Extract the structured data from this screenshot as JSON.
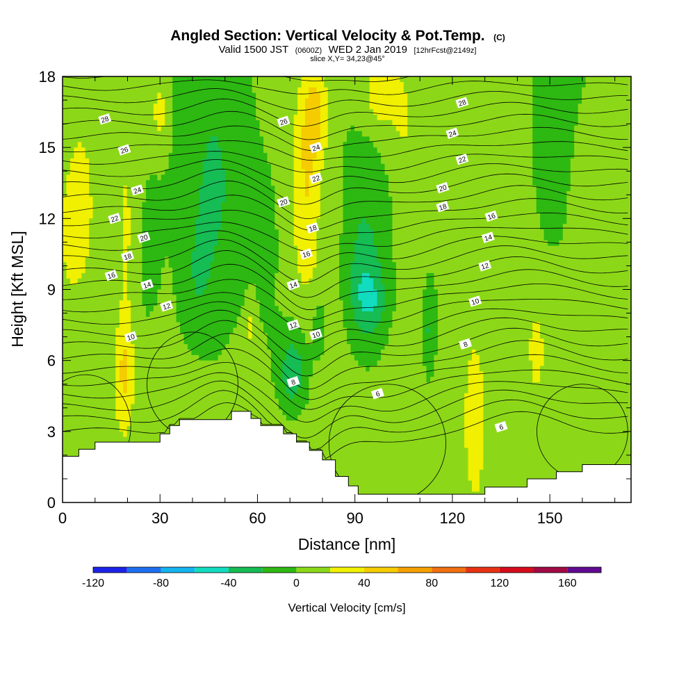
{
  "chart_data": {
    "type": "heatmap",
    "title": {
      "main": "Angled Section: Vertical Velocity & Pot.Temp.",
      "unit_tag": "(C)"
    },
    "subtitle": {
      "valid": "Valid 1500 JST",
      "utc": "(0600Z)",
      "date": "WED 2 Jan 2019",
      "forecast": "[12hrFcst@2149z]"
    },
    "slice": "slice X,Y= 34,23@45°",
    "xlabel": "Distance [nm]",
    "ylabel": "Height [Kft MSL]",
    "xlim": [
      0,
      175
    ],
    "ylim": [
      0,
      18
    ],
    "x_ticks": [
      0,
      30,
      60,
      90,
      120,
      150
    ],
    "y_ticks": [
      0,
      3,
      6,
      9,
      12,
      15,
      18
    ],
    "colorbar": {
      "title": "Vertical Velocity [cm/s]",
      "levels": [
        -120,
        -100,
        -80,
        -60,
        -40,
        -20,
        0,
        20,
        40,
        60,
        80,
        100,
        120,
        140,
        160,
        180
      ],
      "colors": [
        "#1c22e8",
        "#1e6ef0",
        "#14b4ee",
        "#12dcc0",
        "#16bc54",
        "#2db812",
        "#8cd818",
        "#f0f000",
        "#f5cc00",
        "#f5a000",
        "#f07012",
        "#e83214",
        "#d50c1c",
        "#a00a45",
        "#600a90"
      ],
      "tick_labels": [
        "-120",
        "-80",
        "-40",
        "0",
        "40",
        "80",
        "120",
        "160"
      ]
    },
    "terrain_top_kft": [
      [
        0,
        1.95
      ],
      [
        5,
        2.25
      ],
      [
        10,
        2.55
      ],
      [
        30,
        2.9
      ],
      [
        33,
        3.25
      ],
      [
        36,
        3.5
      ],
      [
        52,
        3.85
      ],
      [
        58,
        3.55
      ],
      [
        61,
        3.25
      ],
      [
        68,
        2.9
      ],
      [
        72,
        2.55
      ],
      [
        76,
        2.2
      ],
      [
        80,
        1.8
      ],
      [
        84,
        1.1
      ],
      [
        88,
        0.7
      ],
      [
        91,
        0.35
      ],
      [
        130,
        0.65
      ],
      [
        143,
        1.0
      ],
      [
        152,
        1.3
      ],
      [
        160,
        1.6
      ],
      [
        175,
        1.6
      ]
    ],
    "theta_contour_labels": [
      {
        "x": 13,
        "y": 16.2,
        "text": "28"
      },
      {
        "x": 19,
        "y": 14.9,
        "text": "26"
      },
      {
        "x": 23,
        "y": 13.2,
        "text": "24"
      },
      {
        "x": 16,
        "y": 12.0,
        "text": "22"
      },
      {
        "x": 25,
        "y": 11.2,
        "text": "20"
      },
      {
        "x": 20,
        "y": 10.4,
        "text": "18"
      },
      {
        "x": 15,
        "y": 9.6,
        "text": "16"
      },
      {
        "x": 26,
        "y": 9.2,
        "text": "14"
      },
      {
        "x": 32,
        "y": 8.3,
        "text": "12"
      },
      {
        "x": 21,
        "y": 7.0,
        "text": "10"
      },
      {
        "x": 68,
        "y": 16.1,
        "text": "26"
      },
      {
        "x": 78,
        "y": 15.0,
        "text": "24"
      },
      {
        "x": 78,
        "y": 13.7,
        "text": "22"
      },
      {
        "x": 68,
        "y": 12.7,
        "text": "20"
      },
      {
        "x": 77,
        "y": 11.6,
        "text": "18"
      },
      {
        "x": 75,
        "y": 10.5,
        "text": "16"
      },
      {
        "x": 71,
        "y": 9.2,
        "text": "14"
      },
      {
        "x": 71,
        "y": 7.5,
        "text": "12"
      },
      {
        "x": 78,
        "y": 7.1,
        "text": "10"
      },
      {
        "x": 71,
        "y": 5.1,
        "text": "8"
      },
      {
        "x": 97,
        "y": 4.6,
        "text": "6"
      },
      {
        "x": 123,
        "y": 16.9,
        "text": "28"
      },
      {
        "x": 120,
        "y": 15.6,
        "text": "24"
      },
      {
        "x": 123,
        "y": 14.5,
        "text": "22"
      },
      {
        "x": 117,
        "y": 13.3,
        "text": "20"
      },
      {
        "x": 117,
        "y": 12.5,
        "text": "18"
      },
      {
        "x": 132,
        "y": 12.1,
        "text": "16"
      },
      {
        "x": 131,
        "y": 11.2,
        "text": "14"
      },
      {
        "x": 130,
        "y": 10.0,
        "text": "12"
      },
      {
        "x": 127,
        "y": 8.5,
        "text": "10"
      },
      {
        "x": 124,
        "y": 6.7,
        "text": "8"
      },
      {
        "x": 135,
        "y": 3.2,
        "text": "6"
      }
    ]
  }
}
